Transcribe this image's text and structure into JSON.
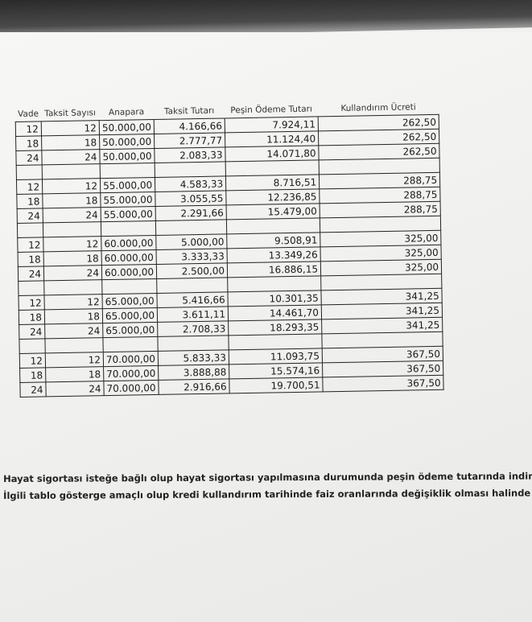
{
  "table": {
    "headers": [
      "Vade",
      "Taksit Sayısı",
      "Anapara",
      "Taksit Tutarı",
      "Peşin Ödeme Tutarı",
      "Kullandırım Ücreti"
    ],
    "groups": [
      {
        "rows": [
          [
            "12",
            "12",
            "50.000,00",
            "4.166,66",
            "7.924,11",
            "262,50"
          ],
          [
            "18",
            "18",
            "50.000,00",
            "2.777,77",
            "11.124,40",
            "262,50"
          ],
          [
            "24",
            "24",
            "50.000,00",
            "2.083,33",
            "14.071,80",
            "262,50"
          ]
        ]
      },
      {
        "rows": [
          [
            "12",
            "12",
            "55.000,00",
            "4.583,33",
            "8.716,51",
            "288,75"
          ],
          [
            "18",
            "18",
            "55.000,00",
            "3.055,55",
            "12.236,85",
            "288,75"
          ],
          [
            "24",
            "24",
            "55.000,00",
            "2.291,66",
            "15.479,00",
            "288,75"
          ]
        ]
      },
      {
        "rows": [
          [
            "12",
            "12",
            "60.000,00",
            "5.000,00",
            "9.508,91",
            "325,00"
          ],
          [
            "18",
            "18",
            "60.000,00",
            "3.333,33",
            "13.349,26",
            "325,00"
          ],
          [
            "24",
            "24",
            "60.000,00",
            "2.500,00",
            "16.886,15",
            "325,00"
          ]
        ]
      },
      {
        "rows": [
          [
            "12",
            "12",
            "65.000,00",
            "5.416,66",
            "10.301,35",
            "341,25"
          ],
          [
            "18",
            "18",
            "65.000,00",
            "3.611,11",
            "14.461,70",
            "341,25"
          ],
          [
            "24",
            "24",
            "65.000,00",
            "2.708,33",
            "18.293,35",
            "341,25"
          ]
        ]
      },
      {
        "rows": [
          [
            "12",
            "12",
            "70.000,00",
            "5.833,33",
            "11.093,75",
            "367,50"
          ],
          [
            "18",
            "18",
            "70.000,00",
            "3.888,88",
            "15.574,16",
            "367,50"
          ],
          [
            "24",
            "24",
            "70.000,00",
            "2.916,66",
            "19.700,51",
            "367,50"
          ]
        ]
      }
    ]
  },
  "notes": [
    "Hayat sigortası isteğe bağlı olup hayat sigortası yapılmasına durumunda peşin ödeme tutarında indir",
    "İlgili tablo gösterge amaçlı olup kredi kullandırım tarihinde faiz oranlarında değişiklik olması halinde"
  ]
}
